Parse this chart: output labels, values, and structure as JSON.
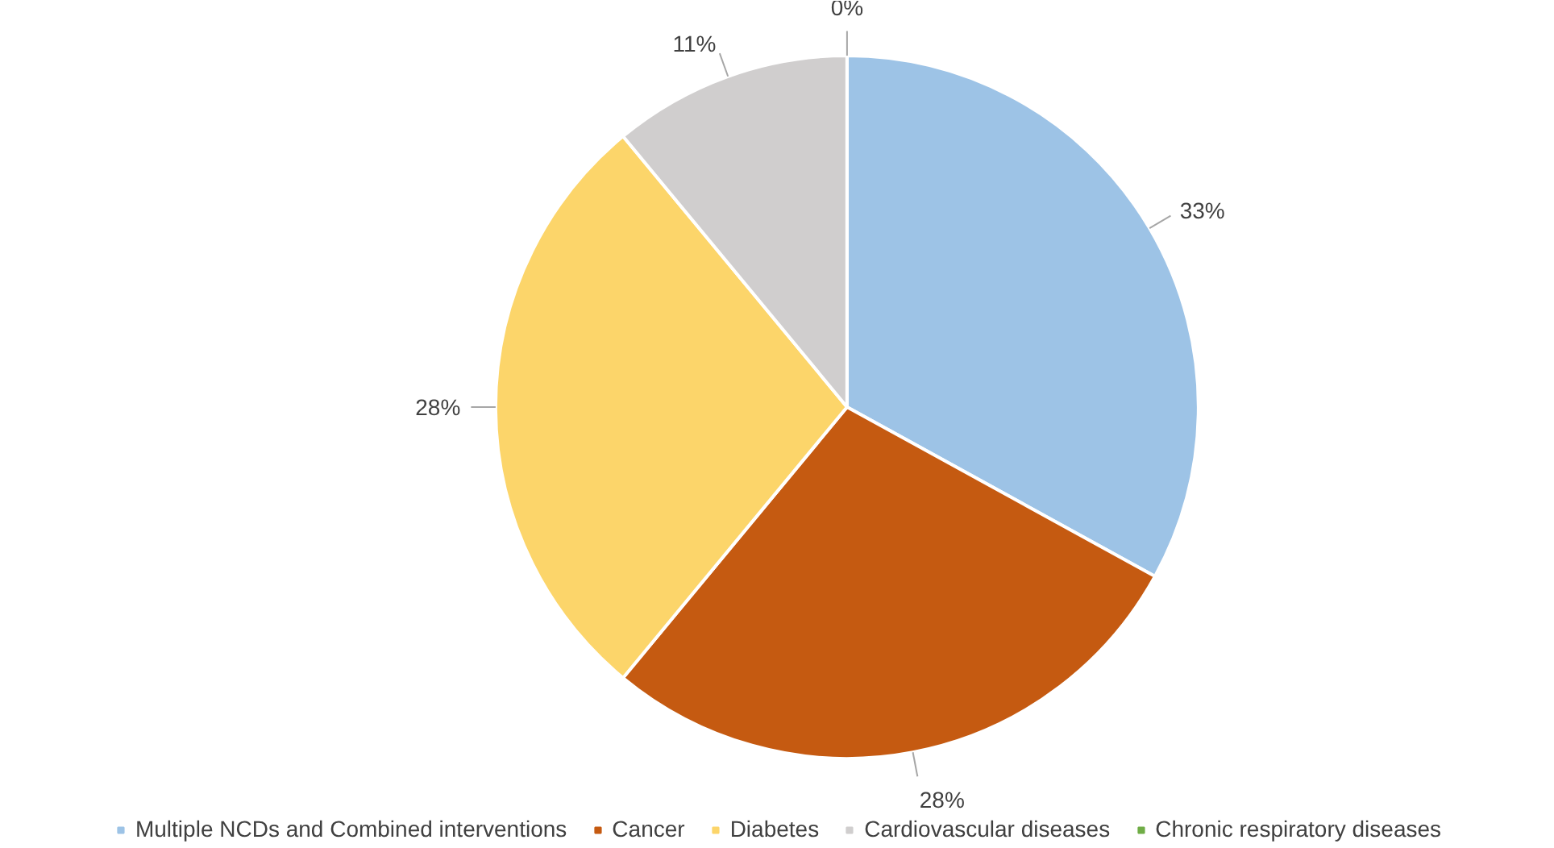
{
  "chart_data": {
    "type": "pie",
    "categories": [
      "Multiple NCDs and Combined interventions",
      "Cancer",
      "Diabetes",
      "Cardiovascular diseases",
      "Chronic respiratory diseases"
    ],
    "values": [
      33,
      28,
      28,
      11,
      0
    ],
    "colors": [
      "#9dc3e6",
      "#c55a11",
      "#fcd56a",
      "#d0cece",
      "#70ad47"
    ],
    "value_labels": [
      "33%",
      "28%",
      "28%",
      "11%",
      "0%"
    ],
    "legend": "bottom"
  }
}
